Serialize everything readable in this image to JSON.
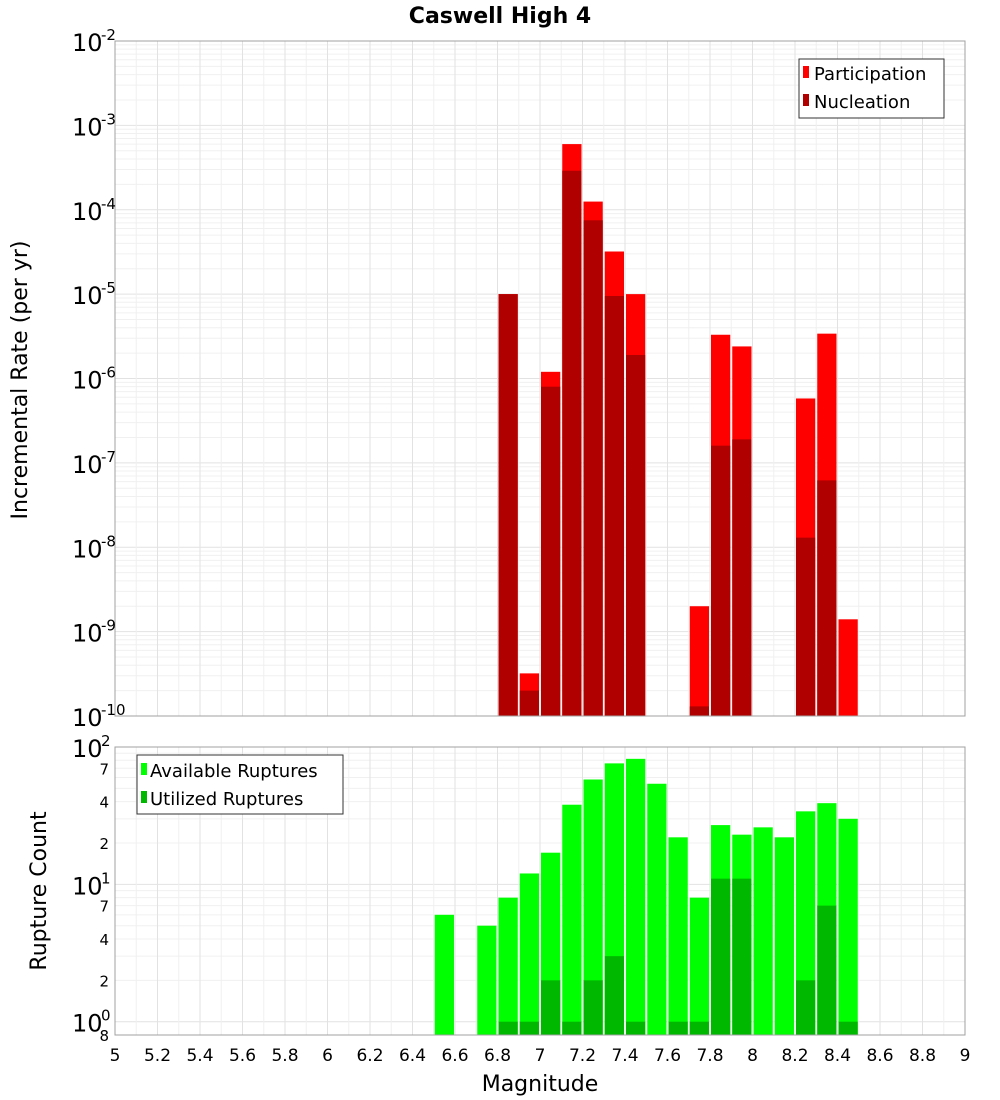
{
  "chart_data": [
    {
      "type": "bar",
      "title": "Caswell High 4",
      "xlabel": "",
      "ylabel": "Incremental Rate (per yr)",
      "yscale": "log",
      "ylim": [
        1e-10,
        0.01
      ],
      "xlim": [
        5,
        9
      ],
      "bar_width": 0.1,
      "legend": "top-right",
      "grid": true,
      "series": [
        {
          "name": "Participation",
          "color": "#ff0000",
          "x": [
            6.85,
            6.95,
            7.05,
            7.15,
            7.25,
            7.35,
            7.45,
            7.75,
            7.85,
            7.95,
            8.25,
            8.35,
            8.45
          ],
          "values": [
            1e-05,
            3.2e-10,
            1.2e-06,
            0.0006,
            0.000125,
            3.2e-05,
            1e-05,
            2e-09,
            3.3e-06,
            2.4e-06,
            5.8e-07,
            3.4e-06,
            1.4e-09
          ]
        },
        {
          "name": "Nucleation",
          "color": "#b00000",
          "x": [
            6.85,
            6.95,
            7.05,
            7.15,
            7.25,
            7.35,
            7.45,
            7.75,
            7.85,
            7.95,
            8.25,
            8.35
          ],
          "values": [
            1e-05,
            2e-10,
            8e-07,
            0.00029,
            7.5e-05,
            9.5e-06,
            1.9e-06,
            1.3e-10,
            1.6e-07,
            1.9e-07,
            1.3e-08,
            6.2e-08
          ]
        }
      ]
    },
    {
      "type": "bar",
      "title": "",
      "xlabel": "Magnitude",
      "ylabel": "Rupture Count",
      "yscale": "log",
      "ylim": [
        0.8,
        100
      ],
      "xlim": [
        5,
        9
      ],
      "bar_width": 0.1,
      "legend": "top-left",
      "grid": true,
      "xticks": [
        "5",
        "5.2",
        "5.4",
        "5.6",
        "5.8",
        "6",
        "6.2",
        "6.4",
        "6.6",
        "6.8",
        "7",
        "7.2",
        "7.4",
        "7.6",
        "7.8",
        "8",
        "8.2",
        "8.4",
        "8.6",
        "8.8",
        "9"
      ],
      "series": [
        {
          "name": "Available Ruptures",
          "color": "#00ff00",
          "x": [
            6.55,
            6.75,
            6.85,
            6.95,
            7.05,
            7.15,
            7.25,
            7.35,
            7.45,
            7.55,
            7.65,
            7.75,
            7.85,
            7.95,
            8.05,
            8.15,
            8.25,
            8.35,
            8.45
          ],
          "values": [
            6,
            5,
            8,
            12,
            17,
            38,
            58,
            76,
            82,
            54,
            22,
            8,
            27,
            23,
            26,
            22,
            34,
            39,
            30
          ]
        },
        {
          "name": "Utilized Ruptures",
          "color": "#00b800",
          "x": [
            6.85,
            6.95,
            7.05,
            7.15,
            7.25,
            7.35,
            7.45,
            7.65,
            7.75,
            7.85,
            7.95,
            8.25,
            8.35,
            8.45
          ],
          "values": [
            1,
            1,
            2,
            1,
            2,
            3,
            1,
            1,
            1,
            11,
            11,
            2,
            7,
            1
          ]
        }
      ]
    }
  ],
  "axis_text": {
    "top_y_ticks": [
      {
        "base": "10",
        "exp": "-2"
      },
      {
        "base": "10",
        "exp": "-3"
      },
      {
        "base": "10",
        "exp": "-4"
      },
      {
        "base": "10",
        "exp": "-5"
      },
      {
        "base": "10",
        "exp": "-6"
      },
      {
        "base": "10",
        "exp": "-7"
      },
      {
        "base": "10",
        "exp": "-8"
      },
      {
        "base": "10",
        "exp": "-9"
      },
      {
        "base": "10",
        "exp": "-10"
      }
    ],
    "bottom_y_major": [
      {
        "base": "10",
        "exp": "2"
      },
      {
        "base": "10",
        "exp": "1"
      },
      {
        "base": "10",
        "exp": "0"
      }
    ],
    "bottom_y_minor": [
      "7",
      "4",
      "2",
      "7",
      "4",
      "2",
      "8"
    ]
  }
}
